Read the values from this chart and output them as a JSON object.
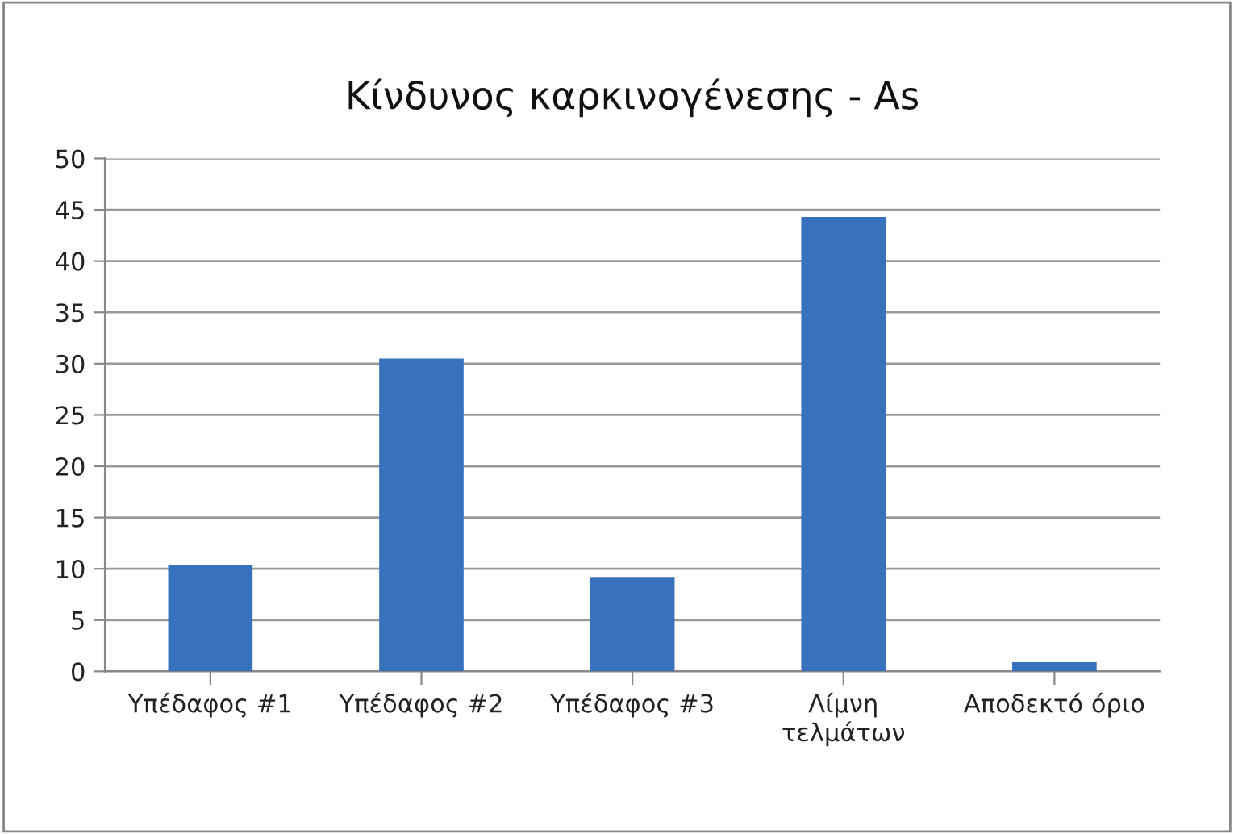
{
  "chart_data": {
    "type": "bar",
    "title": "Κίνδυνος καρκινογένεσης - As",
    "categories": [
      "Υπέδαφος #1",
      "Υπέδαφος #2",
      "Υπέδαφος #3",
      "Λίμνη\nτελμάτων",
      "Αποδεκτό όριο"
    ],
    "values": [
      10.4,
      30.5,
      9.2,
      44.3,
      0.9
    ],
    "color": "#3872bc",
    "ylim": [
      0,
      50
    ],
    "yticks": [
      0,
      5,
      10,
      15,
      20,
      25,
      30,
      35,
      40,
      45,
      50
    ],
    "grid": "y"
  }
}
